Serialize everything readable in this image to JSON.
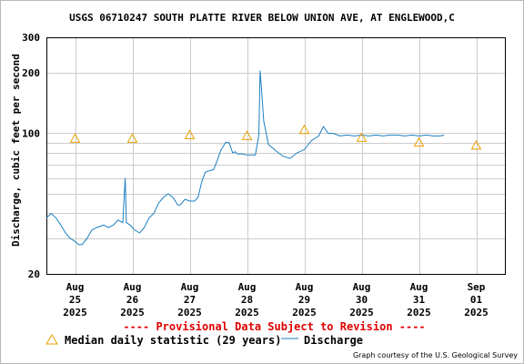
{
  "chart_data": {
    "type": "line",
    "title": "USGS 06710247 SOUTH PLATTE RIVER BELOW UNION AVE, AT ENGLEWOOD,C",
    "ylabel": "Discharge, cubic feet per second",
    "xlabel": "",
    "y_scale": "log",
    "ylim": [
      20,
      300
    ],
    "y_ticks": [
      20,
      100,
      200,
      300
    ],
    "x_ticks": [
      {
        "x": "2025-08-25",
        "lines": [
          "Aug",
          "25",
          "2025"
        ]
      },
      {
        "x": "2025-08-26",
        "lines": [
          "Aug",
          "26",
          "2025"
        ]
      },
      {
        "x": "2025-08-27",
        "lines": [
          "Aug",
          "27",
          "2025"
        ]
      },
      {
        "x": "2025-08-28",
        "lines": [
          "Aug",
          "28",
          "2025"
        ]
      },
      {
        "x": "2025-08-29",
        "lines": [
          "Aug",
          "29",
          "2025"
        ]
      },
      {
        "x": "2025-08-30",
        "lines": [
          "Aug",
          "30",
          "2025"
        ]
      },
      {
        "x": "2025-08-31",
        "lines": [
          "Aug",
          "31",
          "2025"
        ]
      },
      {
        "x": "2025-09-01",
        "lines": [
          "Sep",
          "01",
          "2025"
        ]
      }
    ],
    "grid": true,
    "series": [
      {
        "name": "Discharge",
        "color": "#1a7fc1",
        "points": [
          [
            "2025-08-24 12:00",
            38
          ],
          [
            "2025-08-24 14:00",
            40
          ],
          [
            "2025-08-24 16:00",
            38
          ],
          [
            "2025-08-24 18:00",
            35
          ],
          [
            "2025-08-24 20:00",
            32
          ],
          [
            "2025-08-24 22:00",
            30
          ],
          [
            "2025-08-25 00:00",
            29
          ],
          [
            "2025-08-25 01:30",
            28
          ],
          [
            "2025-08-25 03:00",
            28
          ],
          [
            "2025-08-25 05:00",
            30
          ],
          [
            "2025-08-25 07:00",
            33
          ],
          [
            "2025-08-25 09:00",
            34
          ],
          [
            "2025-08-25 12:00",
            35
          ],
          [
            "2025-08-25 14:00",
            34
          ],
          [
            "2025-08-25 16:00",
            35
          ],
          [
            "2025-08-25 18:00",
            37
          ],
          [
            "2025-08-25 20:00",
            36
          ],
          [
            "2025-08-25 21:00",
            60
          ],
          [
            "2025-08-25 21:30",
            36
          ],
          [
            "2025-08-25 23:00",
            35
          ],
          [
            "2025-08-26 01:00",
            33
          ],
          [
            "2025-08-26 03:00",
            32
          ],
          [
            "2025-08-26 05:00",
            34
          ],
          [
            "2025-08-26 07:00",
            38
          ],
          [
            "2025-08-26 09:00",
            40
          ],
          [
            "2025-08-26 11:00",
            45
          ],
          [
            "2025-08-26 13:00",
            48
          ],
          [
            "2025-08-26 15:00",
            50
          ],
          [
            "2025-08-26 17:00",
            48
          ],
          [
            "2025-08-26 19:00",
            44
          ],
          [
            "2025-08-26 20:00",
            44
          ],
          [
            "2025-08-26 22:00",
            47
          ],
          [
            "2025-08-27 00:00",
            46
          ],
          [
            "2025-08-27 02:00",
            46
          ],
          [
            "2025-08-27 03:30",
            48
          ],
          [
            "2025-08-27 05:00",
            57
          ],
          [
            "2025-08-27 06:30",
            64
          ],
          [
            "2025-08-27 08:00",
            65
          ],
          [
            "2025-08-27 10:00",
            66
          ],
          [
            "2025-08-27 11:30",
            73
          ],
          [
            "2025-08-27 13:00",
            82
          ],
          [
            "2025-08-27 15:00",
            90
          ],
          [
            "2025-08-27 16:30",
            90
          ],
          [
            "2025-08-27 18:00",
            80
          ],
          [
            "2025-08-27 19:00",
            81
          ],
          [
            "2025-08-27 20:00",
            79
          ],
          [
            "2025-08-27 22:00",
            79
          ],
          [
            "2025-08-28 00:00",
            78
          ],
          [
            "2025-08-28 02:00",
            78
          ],
          [
            "2025-08-28 03:30",
            78
          ],
          [
            "2025-08-28 05:00",
            98
          ],
          [
            "2025-08-28 05:30",
            205
          ],
          [
            "2025-08-28 06:00",
            170
          ],
          [
            "2025-08-28 07:00",
            115
          ],
          [
            "2025-08-28 09:00",
            88
          ],
          [
            "2025-08-28 12:00",
            82
          ],
          [
            "2025-08-28 15:00",
            77
          ],
          [
            "2025-08-28 18:00",
            75
          ],
          [
            "2025-08-28 21:00",
            80
          ],
          [
            "2025-08-29 00:00",
            83
          ],
          [
            "2025-08-29 03:00",
            92
          ],
          [
            "2025-08-29 06:00",
            97
          ],
          [
            "2025-08-29 08:00",
            108
          ],
          [
            "2025-08-29 10:00",
            100
          ],
          [
            "2025-08-29 12:00",
            100
          ],
          [
            "2025-08-29 15:00",
            97
          ],
          [
            "2025-08-29 18:00",
            98
          ],
          [
            "2025-08-29 21:00",
            97
          ],
          [
            "2025-08-30 00:00",
            98
          ],
          [
            "2025-08-30 03:00",
            97
          ],
          [
            "2025-08-30 06:00",
            98
          ],
          [
            "2025-08-30 09:00",
            97
          ],
          [
            "2025-08-30 12:00",
            98
          ],
          [
            "2025-08-30 15:00",
            98
          ],
          [
            "2025-08-30 18:00",
            97
          ],
          [
            "2025-08-30 21:00",
            98
          ],
          [
            "2025-08-31 00:00",
            97
          ],
          [
            "2025-08-31 03:00",
            98
          ],
          [
            "2025-08-31 06:00",
            97
          ],
          [
            "2025-08-31 09:00",
            97
          ],
          [
            "2025-08-31 10:30",
            98
          ]
        ]
      },
      {
        "name": "Median daily statistic (29 years)",
        "color": "#e8a000",
        "marker": "triangle",
        "points": [
          [
            "2025-08-25 00:00",
            94
          ],
          [
            "2025-08-26 00:00",
            94
          ],
          [
            "2025-08-27 00:00",
            98
          ],
          [
            "2025-08-28 00:00",
            97
          ],
          [
            "2025-08-29 00:00",
            104
          ],
          [
            "2025-08-30 00:00",
            95
          ],
          [
            "2025-08-31 00:00",
            90
          ],
          [
            "2025-09-01 00:00",
            87
          ]
        ]
      }
    ]
  },
  "legend": {
    "median_label": "Median daily statistic (29 years)",
    "discharge_label": "Discharge"
  },
  "provisional_text": "---- Provisional Data Subject to Revision ----",
  "credit_text": "Graph courtesy of the U.S. Geological Survey"
}
